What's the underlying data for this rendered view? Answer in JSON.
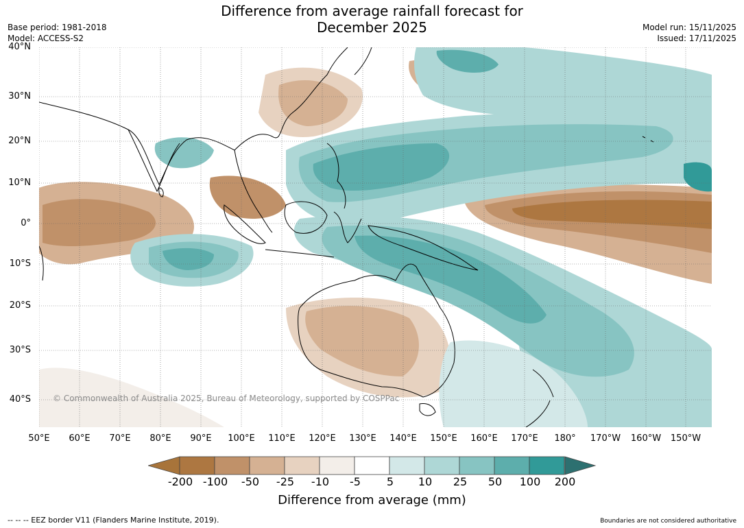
{
  "title_line1": "Difference from average rainfall forecast for",
  "title_line2": "December 2025",
  "base_period": "Base period: 1981-2018",
  "model": "Model: ACCESS-S2",
  "model_run": "Model run: 15/11/2025",
  "issued": "Issued: 17/11/2025",
  "copyright": "© Commonwealth of Australia 2025, Bureau of Meteorology, supported by COSPPac",
  "lat_labels": [
    "40°N",
    "30°N",
    "20°N",
    "10°N",
    "0°",
    "10°S",
    "20°S",
    "30°S",
    "40°S"
  ],
  "lon_labels": [
    "50°E",
    "60°E",
    "70°E",
    "80°E",
    "90°E",
    "100°E",
    "110°E",
    "120°E",
    "130°E",
    "140°E",
    "150°E",
    "160°E",
    "170°E",
    "180°",
    "170°W",
    "160°W",
    "150°W"
  ],
  "colorbar": {
    "labels": [
      "-200",
      "-100",
      "-50",
      "-25",
      "-10",
      "-5",
      "5",
      "10",
      "25",
      "50",
      "100",
      "200"
    ],
    "colors": [
      "#a8743a",
      "#ad7741",
      "#c09169",
      "#d5b193",
      "#e7d2c0",
      "#f3eee9",
      "#ffffff",
      "#d3e8e8",
      "#aed7d6",
      "#87c4c2",
      "#5daeac",
      "#319a98",
      "#2d7070"
    ],
    "title": "Difference from average (mm)"
  },
  "footer_left": "--  --  -- EEZ border V11 (Flanders Marine Institute, 2019).",
  "footer_right": "Boundaries are not considered authoritative"
}
